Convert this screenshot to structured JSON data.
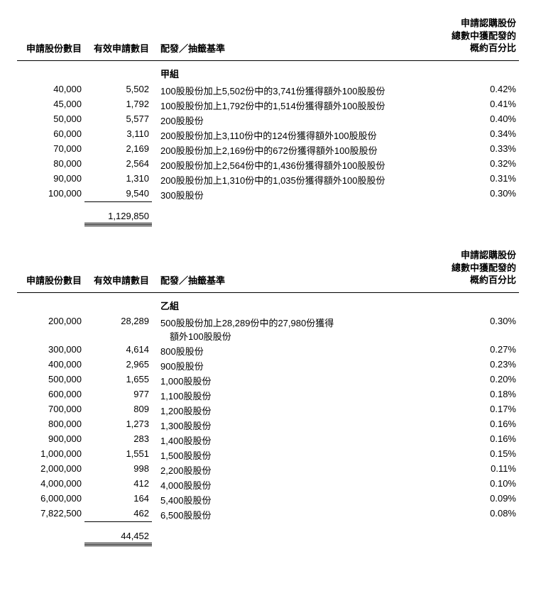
{
  "headers": {
    "col1": "申請股份數目",
    "col2": "有效申請數目",
    "col3": "配發／抽籤基準",
    "col4_l1": "申請認購股份",
    "col4_l2": "總數中獲配發的",
    "col4_l3": "概約百分比"
  },
  "groupA": {
    "title": "甲組",
    "rows": [
      {
        "shares": "40,000",
        "valid": "5,502",
        "basis": "100股股份加上5,502份中的3,741份獲得額外100股股份",
        "pct": "0.42%"
      },
      {
        "shares": "45,000",
        "valid": "1,792",
        "basis": "100股股份加上1,792份中的1,514份獲得額外100股股份",
        "pct": "0.41%"
      },
      {
        "shares": "50,000",
        "valid": "5,577",
        "basis": "200股股份",
        "pct": "0.40%"
      },
      {
        "shares": "60,000",
        "valid": "3,110",
        "basis": "200股股份加上3,110份中的124份獲得額外100股股份",
        "pct": "0.34%"
      },
      {
        "shares": "70,000",
        "valid": "2,169",
        "basis": "200股股份加上2,169份中的672份獲得額外100股股份",
        "pct": "0.33%"
      },
      {
        "shares": "80,000",
        "valid": "2,564",
        "basis": "200股股份加上2,564份中的1,436份獲得額外100股股份",
        "pct": "0.32%"
      },
      {
        "shares": "90,000",
        "valid": "1,310",
        "basis": "200股股份加上1,310份中的1,035份獲得額外100股股份",
        "pct": "0.31%"
      },
      {
        "shares": "100,000",
        "valid": "9,540",
        "basis": "300股股份",
        "pct": "0.30%"
      }
    ],
    "total": "1,129,850"
  },
  "groupB": {
    "title": "乙組",
    "rows": [
      {
        "shares": "200,000",
        "valid": "28,289",
        "basis": "500股股份加上28,289份中的27,980份獲得",
        "basis2": "額外100股股份",
        "pct": "0.30%"
      },
      {
        "shares": "300,000",
        "valid": "4,614",
        "basis": "800股股份",
        "pct": "0.27%"
      },
      {
        "shares": "400,000",
        "valid": "2,965",
        "basis": "900股股份",
        "pct": "0.23%"
      },
      {
        "shares": "500,000",
        "valid": "1,655",
        "basis": "1,000股股份",
        "pct": "0.20%"
      },
      {
        "shares": "600,000",
        "valid": "977",
        "basis": "1,100股股份",
        "pct": "0.18%"
      },
      {
        "shares": "700,000",
        "valid": "809",
        "basis": "1,200股股份",
        "pct": "0.17%"
      },
      {
        "shares": "800,000",
        "valid": "1,273",
        "basis": "1,300股股份",
        "pct": "0.16%"
      },
      {
        "shares": "900,000",
        "valid": "283",
        "basis": "1,400股股份",
        "pct": "0.16%"
      },
      {
        "shares": "1,000,000",
        "valid": "1,551",
        "basis": "1,500股股份",
        "pct": "0.15%"
      },
      {
        "shares": "2,000,000",
        "valid": "998",
        "basis": "2,200股股份",
        "pct": "0.11%"
      },
      {
        "shares": "4,000,000",
        "valid": "412",
        "basis": "4,000股股份",
        "pct": "0.10%"
      },
      {
        "shares": "6,000,000",
        "valid": "164",
        "basis": "5,400股股份",
        "pct": "0.09%"
      },
      {
        "shares": "7,822,500",
        "valid": "462",
        "basis": "6,500股股份",
        "pct": "0.08%"
      }
    ],
    "total": "44,452"
  }
}
